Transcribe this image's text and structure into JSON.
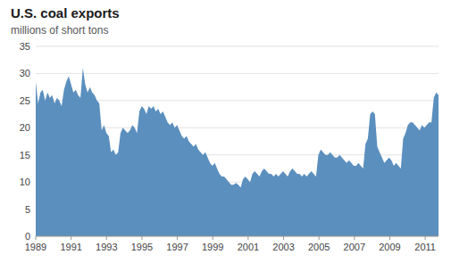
{
  "chart_data": {
    "type": "area",
    "title": "U.S. coal exports",
    "subtitle": "millions of short tons",
    "color": "#5b8fbe",
    "grid": true,
    "xlim": [
      1989,
      2011.75
    ],
    "xticks": [
      1989,
      1991,
      1993,
      1995,
      1997,
      1999,
      2001,
      2003,
      2005,
      2007,
      2009,
      2011
    ],
    "ylim": [
      0,
      35
    ],
    "yticks": [
      0,
      5,
      10,
      15,
      20,
      25,
      30,
      35
    ],
    "x": [
      1989,
      1989.133,
      1989.266,
      1989.399,
      1989.532,
      1989.665,
      1989.798,
      1989.931,
      1990.064,
      1990.197,
      1990.33,
      1990.463,
      1990.596,
      1990.73,
      1990.863,
      1990.996,
      1991.129,
      1991.262,
      1991.395,
      1991.528,
      1991.661,
      1991.794,
      1991.927,
      1992.06,
      1992.193,
      1992.326,
      1992.459,
      1992.592,
      1992.725,
      1992.858,
      1992.991,
      1993.124,
      1993.257,
      1993.39,
      1993.523,
      1993.656,
      1993.789,
      1993.923,
      1994.056,
      1994.189,
      1994.322,
      1994.455,
      1994.588,
      1994.721,
      1994.854,
      1994.987,
      1995.12,
      1995.253,
      1995.386,
      1995.519,
      1995.652,
      1995.785,
      1995.918,
      1996.051,
      1996.184,
      1996.317,
      1996.45,
      1996.583,
      1996.716,
      1996.849,
      1996.982,
      1997.115,
      1997.249,
      1997.382,
      1997.515,
      1997.648,
      1997.781,
      1997.914,
      1998.047,
      1998.18,
      1998.313,
      1998.446,
      1998.579,
      1998.712,
      1998.845,
      1998.978,
      1999.111,
      1999.244,
      1999.377,
      1999.51,
      1999.643,
      1999.776,
      1999.909,
      2000.042,
      2000.175,
      2000.308,
      2000.442,
      2000.575,
      2000.708,
      2000.841,
      2000.974,
      2001.107,
      2001.24,
      2001.373,
      2001.506,
      2001.639,
      2001.772,
      2001.905,
      2002.038,
      2002.171,
      2002.304,
      2002.437,
      2002.57,
      2002.703,
      2002.836,
      2002.969,
      2003.102,
      2003.235,
      2003.368,
      2003.501,
      2003.635,
      2003.768,
      2003.901,
      2004.034,
      2004.167,
      2004.3,
      2004.433,
      2004.566,
      2004.699,
      2004.832,
      2004.965,
      2005.098,
      2005.231,
      2005.364,
      2005.497,
      2005.63,
      2005.763,
      2005.896,
      2006.029,
      2006.162,
      2006.295,
      2006.428,
      2006.561,
      2006.694,
      2006.827,
      2006.961,
      2007.094,
      2007.227,
      2007.36,
      2007.493,
      2007.626,
      2007.759,
      2007.892,
      2008.025,
      2008.158,
      2008.291,
      2008.424,
      2008.557,
      2008.69,
      2008.823,
      2008.956,
      2009.089,
      2009.222,
      2009.355,
      2009.488,
      2009.621,
      2009.754,
      2009.887,
      2010.02,
      2010.154,
      2010.287,
      2010.42,
      2010.553,
      2010.686,
      2010.819,
      2010.952,
      2011.085,
      2011.218,
      2011.351,
      2011.484,
      2011.617,
      2011.75
    ],
    "values": [
      28.5,
      24.5,
      26.5,
      27.0,
      25.0,
      26.5,
      25.5,
      26.0,
      24.5,
      25.5,
      25.0,
      24.0,
      27.0,
      28.5,
      29.5,
      28.0,
      26.5,
      27.0,
      26.0,
      25.5,
      31.0,
      28.0,
      26.5,
      27.5,
      26.5,
      26.0,
      25.0,
      24.5,
      19.5,
      20.5,
      19.0,
      18.5,
      15.5,
      16.0,
      15.0,
      15.5,
      19.0,
      20.0,
      19.5,
      19.0,
      19.5,
      20.5,
      20.0,
      19.0,
      23.0,
      24.0,
      23.5,
      22.5,
      24.0,
      23.5,
      24.0,
      23.0,
      23.5,
      22.5,
      23.0,
      22.0,
      21.0,
      20.5,
      21.0,
      20.0,
      20.5,
      19.5,
      18.5,
      18.0,
      18.5,
      17.5,
      17.0,
      16.5,
      17.0,
      16.0,
      15.5,
      15.0,
      15.5,
      14.5,
      13.5,
      13.0,
      13.5,
      12.5,
      11.5,
      11.0,
      11.0,
      10.5,
      10.0,
      9.5,
      9.5,
      9.8,
      9.5,
      9.0,
      10.5,
      11.0,
      10.5,
      10.0,
      11.5,
      12.0,
      11.5,
      11.0,
      12.0,
      12.5,
      12.0,
      11.5,
      11.5,
      11.0,
      11.5,
      11.0,
      11.5,
      12.0,
      11.5,
      11.0,
      12.0,
      12.5,
      12.0,
      11.5,
      11.5,
      11.0,
      11.5,
      11.0,
      11.5,
      12.0,
      11.5,
      11.0,
      15.0,
      16.0,
      15.5,
      15.0,
      15.0,
      15.5,
      15.0,
      14.5,
      14.5,
      15.0,
      14.5,
      14.0,
      13.5,
      14.0,
      13.5,
      13.0,
      13.0,
      13.5,
      13.0,
      12.5,
      17.0,
      18.0,
      22.5,
      23.0,
      22.5,
      16.5,
      15.5,
      14.5,
      13.5,
      14.0,
      14.5,
      14.0,
      13.0,
      13.5,
      13.0,
      12.5,
      18.0,
      19.0,
      20.5,
      21.0,
      21.0,
      20.5,
      20.0,
      19.5,
      20.5,
      20.0,
      20.5,
      21.0,
      21.0,
      25.5,
      26.5,
      26.0
    ]
  }
}
